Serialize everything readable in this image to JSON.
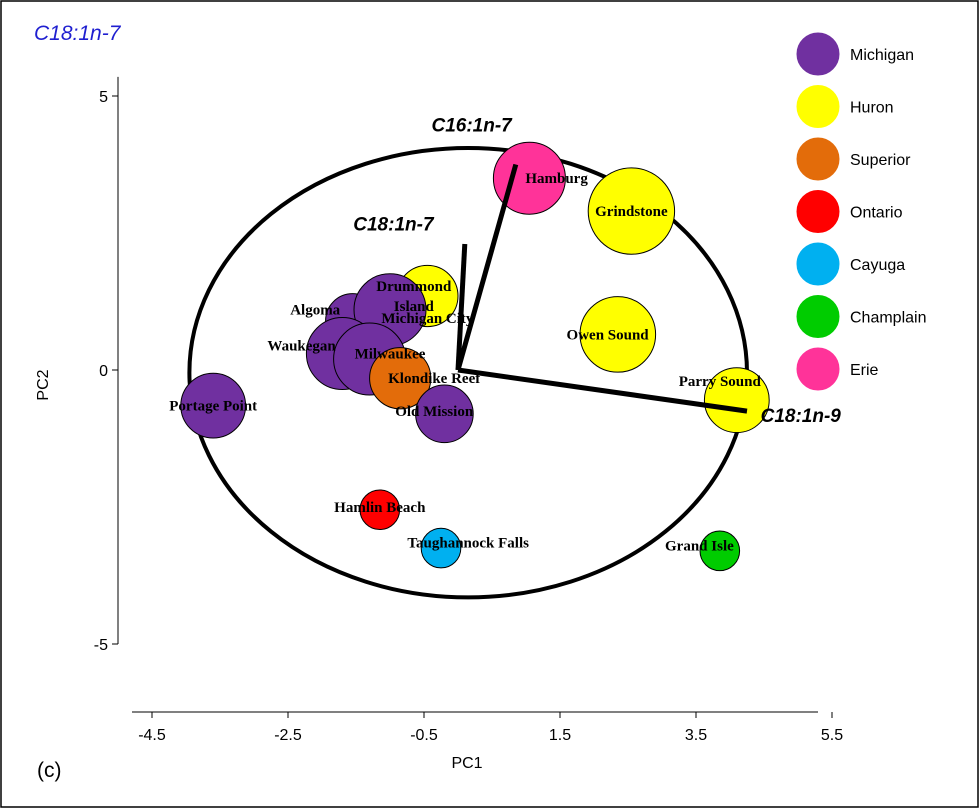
{
  "chart_data": {
    "type": "scatter",
    "title": "C18:1n-7",
    "panel_label": "(c)",
    "xlabel": "PC1",
    "ylabel": "PC2",
    "xlim": [
      -4.5,
      6
    ],
    "ylim": [
      -5,
      5
    ],
    "x_ticks": [
      "-4.5",
      "-2.5",
      "-0.5",
      "1.5",
      "3.5",
      "5.5"
    ],
    "y_ticks": [
      "5",
      "0",
      "-5"
    ],
    "legend_position": "top-right",
    "legend": [
      {
        "name": "Michigan",
        "color": "#7030A0"
      },
      {
        "name": "Huron",
        "color": "#FFFF00"
      },
      {
        "name": "Superior",
        "color": "#E36C0A"
      },
      {
        "name": "Ontario",
        "color": "#FF0000"
      },
      {
        "name": "Cayuga",
        "color": "#00B0F0"
      },
      {
        "name": "Champlain",
        "color": "#00CC00"
      },
      {
        "name": "Erie",
        "color": "#FF3399"
      }
    ],
    "points": [
      {
        "label": "Hamburg",
        "lake": "Erie",
        "x": 1.05,
        "y": 3.5,
        "size": 1.0,
        "label_dx": 0.4,
        "label_dy": 0.0
      },
      {
        "label": "Grindstone",
        "lake": "Huron",
        "x": 2.55,
        "y": 2.9,
        "size": 1.2,
        "label_dx": 0.0,
        "label_dy": 0.0
      },
      {
        "label": "Drummond Island",
        "lake": "Huron",
        "x": -0.45,
        "y": 1.35,
        "size": 0.85,
        "label_dx": -0.2,
        "label_dy": 0.0
      },
      {
        "label": "Owen Sound",
        "lake": "Huron",
        "x": 2.35,
        "y": 0.65,
        "size": 1.05,
        "label_dx": -0.15,
        "label_dy": 0.0
      },
      {
        "label": "Parry Sound",
        "lake": "Huron",
        "x": 4.1,
        "y": -0.55,
        "size": 0.9,
        "label_dx": -0.25,
        "label_dy": 0.35
      },
      {
        "label": "Algoma",
        "lake": "Michigan",
        "x": -1.55,
        "y": 0.9,
        "size": 0.75,
        "label_dx": -0.55,
        "label_dy": 0.2
      },
      {
        "label": "Michigan City",
        "lake": "Michigan",
        "x": -1.0,
        "y": 1.1,
        "size": 1.0,
        "label_dx": 0.55,
        "label_dy": -0.15
      },
      {
        "label": "Waukegan",
        "lake": "Michigan",
        "x": -1.7,
        "y": 0.3,
        "size": 1.0,
        "label_dx": -0.6,
        "label_dy": 0.15
      },
      {
        "label": "Milwaukee",
        "lake": "Michigan",
        "x": -1.3,
        "y": 0.2,
        "size": 1.0,
        "label_dx": 0.3,
        "label_dy": 0.1
      },
      {
        "label": "Klondike Reef",
        "lake": "Superior",
        "x": -0.85,
        "y": -0.15,
        "size": 0.85,
        "label_dx": 0.5,
        "label_dy": 0.0
      },
      {
        "label": "Portage Point",
        "lake": "Michigan",
        "x": -3.6,
        "y": -0.65,
        "size": 0.9,
        "label_dx": 0.0,
        "label_dy": 0.0
      },
      {
        "label": "Old Mission",
        "lake": "Michigan",
        "x": -0.2,
        "y": -0.8,
        "size": 0.8,
        "label_dx": -0.15,
        "label_dy": 0.05
      },
      {
        "label": "Hamlin Beach",
        "lake": "Ontario",
        "x": -1.15,
        "y": -2.55,
        "size": 0.55,
        "label_dx": 0.0,
        "label_dy": 0.05
      },
      {
        "label": "Taughannock Falls",
        "lake": "Cayuga",
        "x": -0.25,
        "y": -3.25,
        "size": 0.55,
        "label_dx": 0.4,
        "label_dy": 0.1
      },
      {
        "label": "Grand Isle",
        "lake": "Champlain",
        "x": 3.85,
        "y": -3.3,
        "size": 0.55,
        "label_dx": -0.3,
        "label_dy": 0.1
      }
    ],
    "vectors": [
      {
        "label": "C16:1n-7",
        "x": 0.85,
        "y": 3.75
      },
      {
        "label": "C18:1n-7",
        "x": 0.1,
        "y": 2.3
      },
      {
        "label": "C18:1n-9",
        "x": 4.25,
        "y": -0.75
      }
    ],
    "correlation_circle": {
      "cx": 0.15,
      "cy": -0.05,
      "r": 4.1
    }
  }
}
